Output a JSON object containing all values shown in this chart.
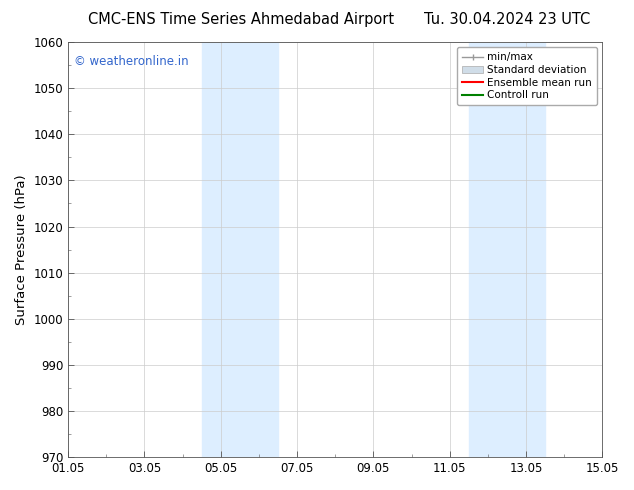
{
  "title_left": "CMC-ENS Time Series Ahmedabad Airport",
  "title_right": "Tu. 30.04.2024 23 UTC",
  "ylabel": "Surface Pressure (hPa)",
  "xlabel_ticks": [
    "01.05",
    "03.05",
    "05.05",
    "07.05",
    "09.05",
    "11.05",
    "13.05",
    "15.05"
  ],
  "xlim": [
    0,
    14
  ],
  "ylim": [
    970,
    1060
  ],
  "yticks": [
    970,
    980,
    990,
    1000,
    1010,
    1020,
    1030,
    1040,
    1050,
    1060
  ],
  "shaded_bands": [
    {
      "xmin": 3.5,
      "xmax": 5.5
    },
    {
      "xmin": 10.5,
      "xmax": 12.5
    }
  ],
  "shade_color": "#ddeeff",
  "watermark_text": "© weatheronline.in",
  "watermark_color": "#3366cc",
  "legend_items": [
    {
      "label": "min/max"
    },
    {
      "label": "Standard deviation"
    },
    {
      "label": "Ensemble mean run"
    },
    {
      "label": "Controll run"
    }
  ],
  "bg_color": "#ffffff",
  "grid_color": "#cccccc",
  "tick_label_fontsize": 8.5,
  "axis_label_fontsize": 9.5,
  "title_fontsize": 10.5
}
